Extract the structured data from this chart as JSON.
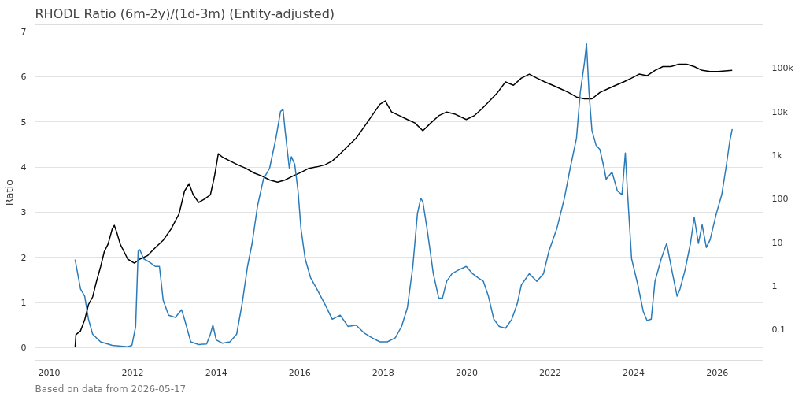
{
  "chart_data": {
    "type": "line",
    "title": "RHODL Ratio (6m-2y)/(1d-3m) (Entity-adjusted)",
    "ylabel": "Ratio",
    "annotations": [
      "Based on data from 2026-05-17"
    ],
    "xlim": [
      2009.66,
      2027.1
    ],
    "xticks": [
      2010,
      2012,
      2014,
      2016,
      2018,
      2020,
      2022,
      2024,
      2026
    ],
    "ylim": [
      -0.28,
      7.15
    ],
    "yticks": [
      0,
      1,
      2,
      3,
      4,
      5,
      6,
      7
    ],
    "y2lim": [
      0.02,
      1000000
    ],
    "y2ticks": [
      {
        "value": 0.1,
        "label": "0.1"
      },
      {
        "value": 1,
        "label": "1"
      },
      {
        "value": 10,
        "label": "10"
      },
      {
        "value": 100,
        "label": "100"
      },
      {
        "value": 1000,
        "label": "1k"
      },
      {
        "value": 10000,
        "label": "10k"
      },
      {
        "value": 100000,
        "label": "100k"
      }
    ],
    "log": "y2",
    "grid": "y",
    "marker": "none",
    "line_style": "solid",
    "series": [
      {
        "color": "#000000",
        "axis": "y2",
        "x": [
          2010.62,
          2010.64,
          2010.75,
          2010.85,
          2010.94,
          2011.04,
          2011.13,
          2011.23,
          2011.32,
          2011.41,
          2011.51,
          2011.56,
          2011.62,
          2011.7,
          2011.79,
          2011.88,
          2012.04,
          2012.17,
          2012.36,
          2012.54,
          2012.73,
          2012.92,
          2013.11,
          2013.24,
          2013.35,
          2013.45,
          2013.58,
          2013.73,
          2013.86,
          2013.96,
          2014.05,
          2014.15,
          2014.33,
          2014.52,
          2014.71,
          2014.9,
          2015.09,
          2015.28,
          2015.47,
          2015.65,
          2015.84,
          2016.03,
          2016.22,
          2016.41,
          2016.6,
          2016.78,
          2016.97,
          2017.16,
          2017.35,
          2017.54,
          2017.73,
          2017.92,
          2018.05,
          2018.2,
          2018.39,
          2018.58,
          2018.76,
          2018.95,
          2019.14,
          2019.33,
          2019.52,
          2019.71,
          2019.99,
          2020.18,
          2020.37,
          2020.55,
          2020.74,
          2020.93,
          2021.12,
          2021.31,
          2021.5,
          2021.68,
          2021.87,
          2022.06,
          2022.25,
          2022.44,
          2022.63,
          2022.82,
          2023.0,
          2023.19,
          2023.38,
          2023.57,
          2023.76,
          2023.95,
          2024.13,
          2024.32,
          2024.51,
          2024.7,
          2024.89,
          2025.08,
          2025.27,
          2025.45,
          2025.64,
          2025.83,
          2026.02,
          2026.36
        ],
        "values": [
          0.04,
          0.078,
          0.095,
          0.17,
          0.38,
          0.57,
          1.27,
          2.8,
          6.3,
          9.3,
          20.8,
          25,
          17,
          9.3,
          6.3,
          4.2,
          3.4,
          4.2,
          5.1,
          7.7,
          11.4,
          20.8,
          46,
          152,
          226,
          125,
          84,
          102,
          125,
          340,
          1100,
          920,
          750,
          610,
          510,
          400,
          340,
          275,
          245,
          275,
          340,
          410,
          510,
          550,
          610,
          750,
          1100,
          1660,
          2500,
          4500,
          8200,
          15000,
          18000,
          10000,
          8200,
          6700,
          5600,
          3700,
          5600,
          8200,
          10000,
          9000,
          6700,
          8200,
          12000,
          18000,
          28000,
          49000,
          41000,
          60000,
          74000,
          60000,
          49000,
          41000,
          34000,
          28000,
          22000,
          20000,
          20000,
          28000,
          34000,
          41000,
          49000,
          60000,
          74000,
          68000,
          90000,
          110000,
          110000,
          125000,
          125000,
          110000,
          90000,
          85000,
          85000,
          90000
        ]
      },
      {
        "color": "#2b7bb9",
        "x": [
          2010.62,
          2010.75,
          2010.85,
          2010.94,
          2011.04,
          2011.23,
          2011.51,
          2011.88,
          2011.98,
          2012.07,
          2012.13,
          2012.17,
          2012.26,
          2012.41,
          2012.54,
          2012.64,
          2012.73,
          2012.86,
          2013.02,
          2013.17,
          2013.24,
          2013.39,
          2013.58,
          2013.77,
          2013.86,
          2013.92,
          2014.0,
          2014.15,
          2014.33,
          2014.49,
          2014.62,
          2014.75,
          2014.86,
          2014.99,
          2015.13,
          2015.28,
          2015.43,
          2015.54,
          2015.6,
          2015.65,
          2015.75,
          2015.8,
          2015.88,
          2015.96,
          2016.03,
          2016.13,
          2016.26,
          2016.41,
          2016.6,
          2016.78,
          2016.97,
          2017.16,
          2017.35,
          2017.54,
          2017.73,
          2017.92,
          2018.1,
          2018.29,
          2018.44,
          2018.58,
          2018.71,
          2018.82,
          2018.9,
          2018.95,
          2019.05,
          2019.2,
          2019.33,
          2019.42,
          2019.52,
          2019.65,
          2019.8,
          2019.99,
          2020.14,
          2020.27,
          2020.4,
          2020.52,
          2020.65,
          2020.78,
          2020.93,
          2021.08,
          2021.21,
          2021.31,
          2021.5,
          2021.68,
          2021.84,
          2021.97,
          2022.16,
          2022.34,
          2022.48,
          2022.63,
          2022.72,
          2022.82,
          2022.87,
          2022.93,
          2023.0,
          2023.1,
          2023.19,
          2023.29,
          2023.34,
          2023.48,
          2023.61,
          2023.72,
          2023.8,
          2023.85,
          2023.95,
          2024.1,
          2024.23,
          2024.32,
          2024.42,
          2024.51,
          2024.66,
          2024.79,
          2024.93,
          2025.04,
          2025.11,
          2025.23,
          2025.36,
          2025.45,
          2025.55,
          2025.64,
          2025.74,
          2025.83,
          2025.98,
          2026.11,
          2026.21,
          2026.3,
          2026.36
        ],
        "values": [
          1.95,
          1.3,
          1.14,
          0.63,
          0.3,
          0.13,
          0.05,
          0.02,
          0.05,
          0.47,
          2.14,
          2.17,
          1.97,
          1.89,
          1.8,
          1.8,
          1.05,
          0.72,
          0.67,
          0.84,
          0.63,
          0.13,
          0.07,
          0.08,
          0.3,
          0.5,
          0.17,
          0.1,
          0.13,
          0.3,
          0.97,
          1.8,
          2.31,
          3.14,
          3.73,
          3.98,
          4.64,
          5.23,
          5.28,
          4.81,
          3.98,
          4.23,
          4.06,
          3.47,
          2.64,
          1.97,
          1.55,
          1.3,
          0.97,
          0.63,
          0.72,
          0.47,
          0.5,
          0.33,
          0.22,
          0.13,
          0.13,
          0.22,
          0.47,
          0.89,
          1.8,
          2.97,
          3.31,
          3.23,
          2.64,
          1.64,
          1.1,
          1.1,
          1.47,
          1.64,
          1.72,
          1.8,
          1.64,
          1.55,
          1.47,
          1.14,
          0.63,
          0.47,
          0.43,
          0.63,
          0.97,
          1.39,
          1.64,
          1.47,
          1.64,
          2.14,
          2.64,
          3.31,
          3.98,
          4.64,
          5.65,
          6.31,
          6.73,
          5.65,
          4.81,
          4.48,
          4.39,
          3.98,
          3.73,
          3.89,
          3.47,
          3.39,
          4.31,
          3.47,
          1.97,
          1.39,
          0.8,
          0.6,
          0.63,
          1.47,
          1.97,
          2.31,
          1.64,
          1.14,
          1.3,
          1.72,
          2.31,
          2.89,
          2.31,
          2.72,
          2.22,
          2.39,
          2.97,
          3.39,
          3.98,
          4.56,
          4.84
        ]
      }
    ]
  }
}
